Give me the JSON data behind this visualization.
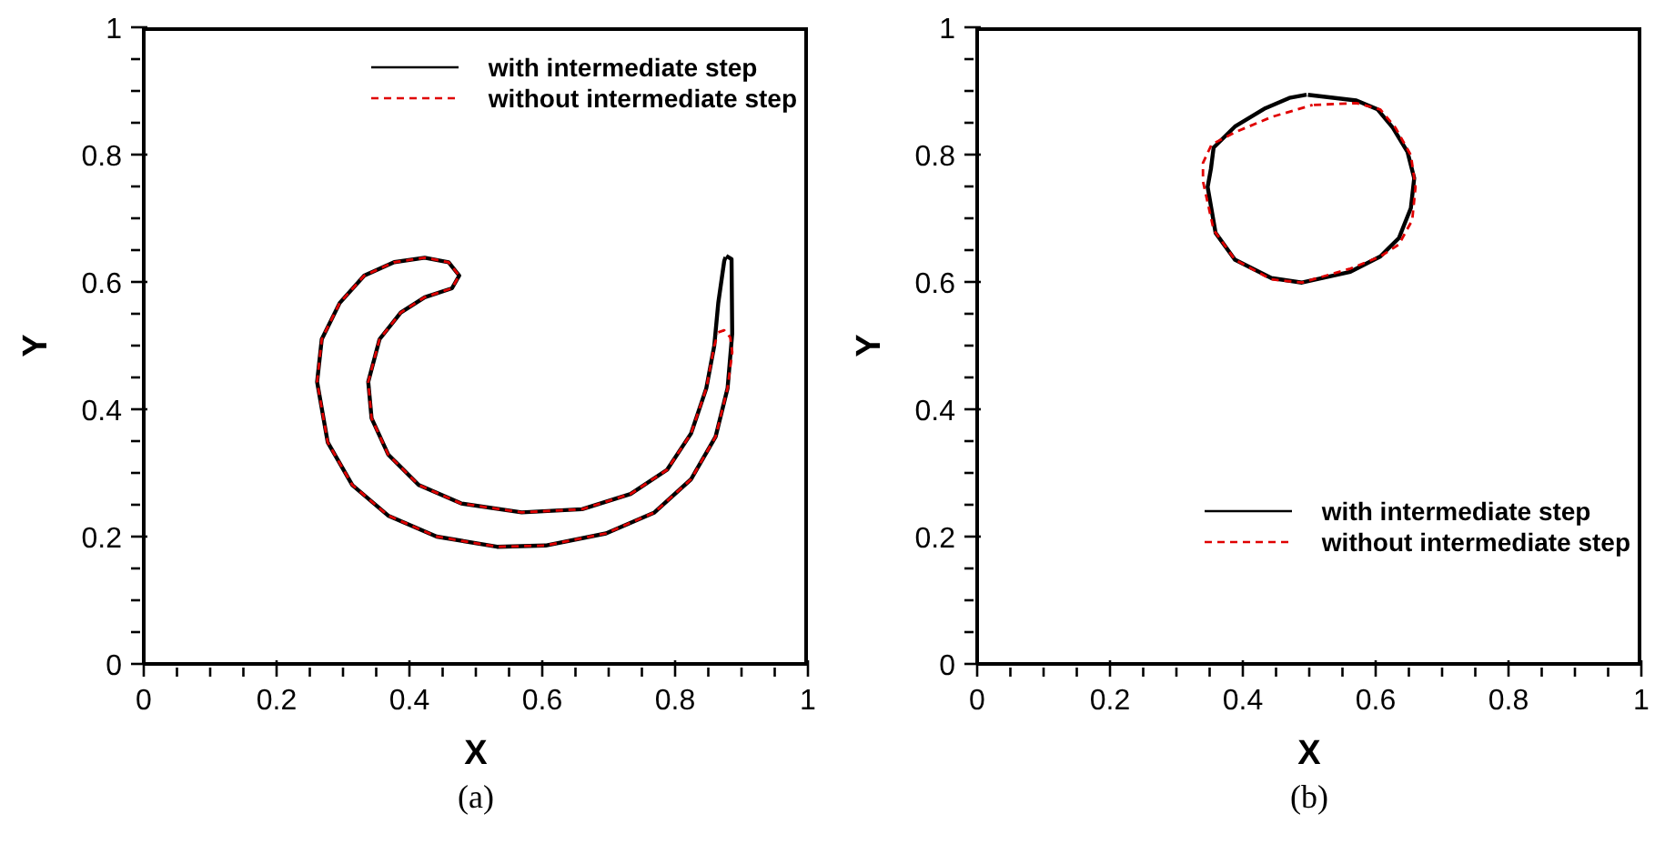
{
  "chart_data": [
    {
      "type": "line",
      "xlabel": "X",
      "ylabel": "Y",
      "xlim": [
        0,
        1
      ],
      "ylim": [
        0,
        1
      ],
      "xticks": [
        0,
        {
          "value": 0.05,
          "label": null
        },
        {
          "value": 0.1,
          "label": null
        },
        {
          "value": 0.15,
          "label": null
        },
        0.2,
        {
          "value": 0.25,
          "label": null
        },
        {
          "value": 0.3,
          "label": null
        },
        {
          "value": 0.35,
          "label": null
        },
        0.4,
        {
          "value": 0.45,
          "label": null
        },
        {
          "value": 0.5,
          "label": null
        },
        {
          "value": 0.55,
          "label": null
        },
        0.6,
        {
          "value": 0.65,
          "label": null
        },
        {
          "value": 0.7,
          "label": null
        },
        {
          "value": 0.75,
          "label": null
        },
        0.8,
        {
          "value": 0.85,
          "label": null
        },
        {
          "value": 0.9,
          "label": null
        },
        {
          "value": 0.95,
          "label": null
        },
        1
      ],
      "yticks": [
        0,
        {
          "value": 0.05,
          "label": null
        },
        {
          "value": 0.1,
          "label": null
        },
        {
          "value": 0.15,
          "label": null
        },
        0.2,
        {
          "value": 0.25,
          "label": null
        },
        {
          "value": 0.3,
          "label": null
        },
        {
          "value": 0.35,
          "label": null
        },
        0.4,
        {
          "value": 0.45,
          "label": null
        },
        {
          "value": 0.5,
          "label": null
        },
        {
          "value": 0.55,
          "label": null
        },
        0.6,
        {
          "value": 0.65,
          "label": null
        },
        {
          "value": 0.7,
          "label": null
        },
        {
          "value": 0.75,
          "label": null
        },
        0.8,
        {
          "value": 0.85,
          "label": null
        },
        {
          "value": 0.9,
          "label": null
        },
        {
          "value": 0.95,
          "label": null
        },
        1
      ],
      "legend": "top right",
      "annotations": [
        "(a)"
      ],
      "series": [
        {
          "name": "with intermediate step",
          "color": "#000000",
          "line_style": "solid",
          "x": [
            0.877,
            0.885,
            0.886,
            0.879,
            0.861,
            0.824,
            0.769,
            0.696,
            0.605,
            0.532,
            0.441,
            0.368,
            0.314,
            0.277,
            0.261,
            0.268,
            0.295,
            0.332,
            0.377,
            0.423,
            0.459,
            0.475,
            0.464,
            0.423,
            0.387,
            0.355,
            0.338,
            0.343,
            0.368,
            0.414,
            0.478,
            0.569,
            0.66,
            0.733,
            0.788,
            0.824,
            0.847,
            0.859,
            0.865,
            0.874,
            0.876
          ],
          "values": [
            0.641,
            0.636,
            0.519,
            0.433,
            0.357,
            0.29,
            0.238,
            0.205,
            0.186,
            0.184,
            0.2,
            0.233,
            0.281,
            0.348,
            0.443,
            0.51,
            0.567,
            0.61,
            0.631,
            0.638,
            0.631,
            0.61,
            0.59,
            0.576,
            0.552,
            0.51,
            0.443,
            0.386,
            0.329,
            0.281,
            0.252,
            0.238,
            0.243,
            0.267,
            0.305,
            0.362,
            0.433,
            0.5,
            0.567,
            0.633,
            0.639
          ]
        },
        {
          "name": "without intermediate step",
          "color": "#e00000",
          "line_style": "dashed",
          "x": [
            0.865,
            0.874,
            0.883,
            0.886,
            0.879,
            0.861,
            0.824,
            0.769,
            0.696,
            0.605,
            0.532,
            0.441,
            0.368,
            0.314,
            0.277,
            0.261,
            0.268,
            0.295,
            0.332,
            0.377,
            0.423,
            0.459,
            0.475,
            0.464,
            0.423,
            0.387,
            0.355,
            0.338,
            0.343,
            0.368,
            0.414,
            0.478,
            0.569,
            0.66,
            0.733,
            0.788,
            0.824,
            0.847,
            0.859,
            0.864
          ],
          "values": [
            0.521,
            0.524,
            0.513,
            0.49,
            0.433,
            0.357,
            0.29,
            0.238,
            0.205,
            0.186,
            0.184,
            0.2,
            0.233,
            0.281,
            0.348,
            0.443,
            0.51,
            0.567,
            0.61,
            0.631,
            0.638,
            0.631,
            0.61,
            0.59,
            0.576,
            0.552,
            0.51,
            0.443,
            0.386,
            0.329,
            0.281,
            0.252,
            0.238,
            0.243,
            0.267,
            0.305,
            0.362,
            0.433,
            0.5,
            0.518
          ]
        }
      ]
    },
    {
      "type": "line",
      "xlabel": "X",
      "ylabel": "Y",
      "xlim": [
        0,
        1
      ],
      "ylim": [
        0,
        1
      ],
      "xticks": [
        0,
        {
          "value": 0.05,
          "label": null
        },
        {
          "value": 0.1,
          "label": null
        },
        {
          "value": 0.15,
          "label": null
        },
        0.2,
        {
          "value": 0.25,
          "label": null
        },
        {
          "value": 0.3,
          "label": null
        },
        {
          "value": 0.35,
          "label": null
        },
        0.4,
        {
          "value": 0.45,
          "label": null
        },
        {
          "value": 0.5,
          "label": null
        },
        {
          "value": 0.55,
          "label": null
        },
        0.6,
        {
          "value": 0.65,
          "label": null
        },
        {
          "value": 0.7,
          "label": null
        },
        {
          "value": 0.75,
          "label": null
        },
        0.8,
        {
          "value": 0.85,
          "label": null
        },
        {
          "value": 0.9,
          "label": null
        },
        {
          "value": 0.95,
          "label": null
        },
        1
      ],
      "yticks": [
        0,
        {
          "value": 0.05,
          "label": null
        },
        {
          "value": 0.1,
          "label": null
        },
        {
          "value": 0.15,
          "label": null
        },
        0.2,
        {
          "value": 0.25,
          "label": null
        },
        {
          "value": 0.3,
          "label": null
        },
        {
          "value": 0.35,
          "label": null
        },
        0.4,
        {
          "value": 0.45,
          "label": null
        },
        {
          "value": 0.5,
          "label": null
        },
        {
          "value": 0.55,
          "label": null
        },
        0.6,
        {
          "value": 0.65,
          "label": null
        },
        {
          "value": 0.7,
          "label": null
        },
        {
          "value": 0.75,
          "label": null
        },
        0.8,
        {
          "value": 0.85,
          "label": null
        },
        {
          "value": 0.9,
          "label": null
        },
        {
          "value": 0.95,
          "label": null
        },
        1
      ],
      "legend": "bottom right",
      "annotations": [
        "(b)"
      ],
      "series": [
        {
          "name": "with intermediate step",
          "color": "#000000",
          "line_style": "solid",
          "x": [
            0.498,
            0.571,
            0.603,
            0.626,
            0.648,
            0.658,
            0.653,
            0.635,
            0.607,
            0.562,
            0.489,
            0.443,
            0.388,
            0.359,
            0.347,
            0.352,
            0.356,
            0.388,
            0.434,
            0.47,
            0.496
          ],
          "values": [
            0.894,
            0.885,
            0.871,
            0.842,
            0.804,
            0.763,
            0.716,
            0.669,
            0.64,
            0.616,
            0.599,
            0.606,
            0.635,
            0.677,
            0.749,
            0.778,
            0.811,
            0.844,
            0.873,
            0.889,
            0.894
          ]
        },
        {
          "name": "without intermediate step",
          "color": "#e00000",
          "line_style": "dashed",
          "x": [
            0.507,
            0.571,
            0.607,
            0.63,
            0.653,
            0.66,
            0.655,
            0.635,
            0.607,
            0.562,
            0.489,
            0.443,
            0.388,
            0.356,
            0.34,
            0.34,
            0.353,
            0.388,
            0.443,
            0.505
          ],
          "values": [
            0.878,
            0.881,
            0.871,
            0.842,
            0.799,
            0.749,
            0.697,
            0.659,
            0.64,
            0.621,
            0.599,
            0.604,
            0.635,
            0.682,
            0.758,
            0.787,
            0.816,
            0.835,
            0.859,
            0.878
          ]
        }
      ]
    }
  ]
}
